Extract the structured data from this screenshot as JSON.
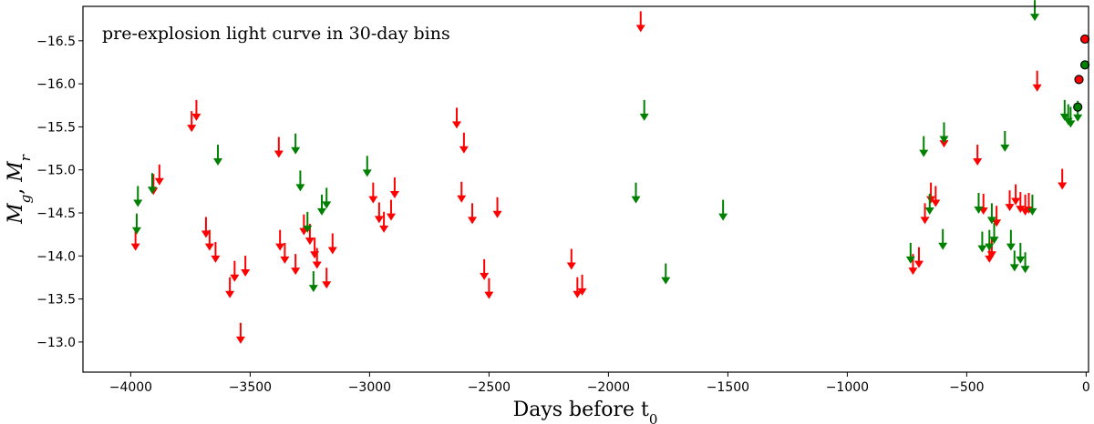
{
  "chart_data": {
    "type": "scatter",
    "title": "",
    "xlabel": "Days before t",
    "xlabel_sub": "0",
    "ylabel": "M",
    "ylabel_sub_g": "g",
    "ylabel_sub_r": "r",
    "ylabel_sep": ", ",
    "annotation": "pre-explosion light curve in 30-day bins",
    "xlim": [
      -4200,
      10
    ],
    "ylim": [
      -12.65,
      -16.9
    ],
    "y_inverted": true,
    "grid": false,
    "x_ticks": [
      -4000,
      -3500,
      -3000,
      -2500,
      -2000,
      -1500,
      -1000,
      -500,
      0
    ],
    "x_tick_labels": [
      "−4000",
      "−3500",
      "−3000",
      "−2500",
      "−2000",
      "−1500",
      "−1000",
      "−500",
      "0"
    ],
    "y_ticks": [
      -13.0,
      -13.5,
      -14.0,
      -14.5,
      -15.0,
      -15.5,
      -16.0,
      -16.5
    ],
    "y_tick_labels": [
      "−13.0",
      "−13.5",
      "−14.0",
      "−14.5",
      "−15.0",
      "−15.5",
      "−16.0",
      "−16.5"
    ],
    "colors": {
      "g": "#008000",
      "r": "#ff0000",
      "axis": "#000000",
      "marker_edge": "#000000"
    },
    "series": [
      {
        "band": "r",
        "marker": "upper-limit-arrow",
        "points": [
          {
            "x": -3980,
            "y": -14.07
          },
          {
            "x": -3905,
            "y": -14.72
          },
          {
            "x": -3880,
            "y": -14.83
          },
          {
            "x": -3745,
            "y": -15.45
          },
          {
            "x": -3725,
            "y": -15.58
          },
          {
            "x": -3685,
            "y": -14.22
          },
          {
            "x": -3670,
            "y": -14.07
          },
          {
            "x": -3645,
            "y": -13.93
          },
          {
            "x": -3585,
            "y": -13.52
          },
          {
            "x": -3565,
            "y": -13.71
          },
          {
            "x": -3540,
            "y": -12.99
          },
          {
            "x": -3520,
            "y": -13.77
          },
          {
            "x": -3380,
            "y": -15.15
          },
          {
            "x": -3375,
            "y": -14.07
          },
          {
            "x": -3355,
            "y": -13.92
          },
          {
            "x": -3310,
            "y": -13.79
          },
          {
            "x": -3275,
            "y": -14.25
          },
          {
            "x": -3250,
            "y": -14.14
          },
          {
            "x": -3230,
            "y": -13.98
          },
          {
            "x": -3220,
            "y": -13.86
          },
          {
            "x": -3180,
            "y": -13.63
          },
          {
            "x": -3155,
            "y": -14.03
          },
          {
            "x": -2985,
            "y": -14.62
          },
          {
            "x": -2960,
            "y": -14.39
          },
          {
            "x": -2940,
            "y": -14.28
          },
          {
            "x": -2910,
            "y": -14.42
          },
          {
            "x": -2895,
            "y": -14.68
          },
          {
            "x": -2635,
            "y": -15.49
          },
          {
            "x": -2615,
            "y": -14.63
          },
          {
            "x": -2605,
            "y": -15.2
          },
          {
            "x": -2570,
            "y": -14.38
          },
          {
            "x": -2520,
            "y": -13.73
          },
          {
            "x": -2500,
            "y": -13.51
          },
          {
            "x": -2465,
            "y": -14.45
          },
          {
            "x": -2155,
            "y": -13.85
          },
          {
            "x": -2130,
            "y": -13.52
          },
          {
            "x": -2110,
            "y": -13.55
          },
          {
            "x": -1865,
            "y": -16.61
          },
          {
            "x": -725,
            "y": -13.79
          },
          {
            "x": -700,
            "y": -13.87
          },
          {
            "x": -675,
            "y": -14.38
          },
          {
            "x": -650,
            "y": -14.62
          },
          {
            "x": -630,
            "y": -14.58
          },
          {
            "x": -595,
            "y": -15.27
          },
          {
            "x": -455,
            "y": -15.06
          },
          {
            "x": -430,
            "y": -14.49
          },
          {
            "x": -405,
            "y": -13.93
          },
          {
            "x": -395,
            "y": -13.98
          },
          {
            "x": -375,
            "y": -14.35
          },
          {
            "x": -320,
            "y": -14.53
          },
          {
            "x": -295,
            "y": -14.6
          },
          {
            "x": -275,
            "y": -14.51
          },
          {
            "x": -255,
            "y": -14.48
          },
          {
            "x": -240,
            "y": -14.5
          },
          {
            "x": -205,
            "y": -15.92
          },
          {
            "x": -100,
            "y": -14.78
          }
        ]
      },
      {
        "band": "g",
        "marker": "upper-limit-arrow",
        "points": [
          {
            "x": -3975,
            "y": -14.26
          },
          {
            "x": -3970,
            "y": -14.58
          },
          {
            "x": -3910,
            "y": -14.73
          },
          {
            "x": -3635,
            "y": -15.06
          },
          {
            "x": -3310,
            "y": -15.19
          },
          {
            "x": -3290,
            "y": -14.76
          },
          {
            "x": -3260,
            "y": -14.28
          },
          {
            "x": -3235,
            "y": -13.59
          },
          {
            "x": -3200,
            "y": -14.48
          },
          {
            "x": -3180,
            "y": -14.56
          },
          {
            "x": -3010,
            "y": -14.93
          },
          {
            "x": -1885,
            "y": -14.62
          },
          {
            "x": -1850,
            "y": -15.58
          },
          {
            "x": -1760,
            "y": -13.68
          },
          {
            "x": -1520,
            "y": -14.42
          },
          {
            "x": -735,
            "y": -13.92
          },
          {
            "x": -680,
            "y": -15.16
          },
          {
            "x": -655,
            "y": -14.49
          },
          {
            "x": -600,
            "y": -14.08
          },
          {
            "x": -595,
            "y": -15.32
          },
          {
            "x": -450,
            "y": -14.5
          },
          {
            "x": -435,
            "y": -14.05
          },
          {
            "x": -405,
            "y": -14.07
          },
          {
            "x": -395,
            "y": -14.38
          },
          {
            "x": -385,
            "y": -14.15
          },
          {
            "x": -340,
            "y": -15.22
          },
          {
            "x": -315,
            "y": -14.07
          },
          {
            "x": -300,
            "y": -13.83
          },
          {
            "x": -275,
            "y": -13.92
          },
          {
            "x": -255,
            "y": -13.81
          },
          {
            "x": -225,
            "y": -14.48
          },
          {
            "x": -215,
            "y": -16.74
          },
          {
            "x": -90,
            "y": -15.58
          },
          {
            "x": -75,
            "y": -15.53
          },
          {
            "x": -65,
            "y": -15.5
          },
          {
            "x": -35,
            "y": -15.57
          }
        ]
      },
      {
        "band": "r",
        "marker": "detection-circle",
        "points": [
          {
            "x": -30,
            "y": -16.05
          },
          {
            "x": -5,
            "y": -16.52
          }
        ]
      },
      {
        "band": "g",
        "marker": "detection-circle",
        "points": [
          {
            "x": -35,
            "y": -15.73
          },
          {
            "x": -5,
            "y": -16.22
          }
        ]
      }
    ]
  }
}
